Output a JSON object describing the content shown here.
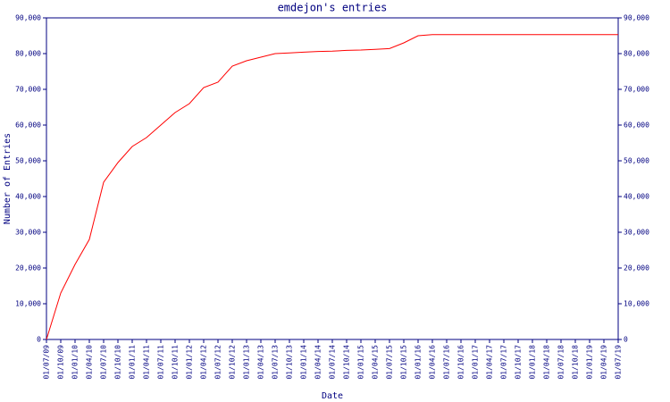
{
  "chart_data": {
    "type": "line",
    "title": "emdejon's entries",
    "x_label": "Date",
    "y_label": "Number of Entries",
    "categories": [
      "01/07/09",
      "01/10/09",
      "01/01/10",
      "01/04/10",
      "01/07/10",
      "01/10/10",
      "01/01/11",
      "01/04/11",
      "01/07/11",
      "01/10/11",
      "01/01/12",
      "01/04/12",
      "01/07/12",
      "01/10/12",
      "01/01/13",
      "01/04/13",
      "01/07/13",
      "01/10/13",
      "01/01/14",
      "01/04/14",
      "01/07/14",
      "01/10/14",
      "01/01/15",
      "01/04/15",
      "01/07/15",
      "01/10/15",
      "01/01/16",
      "01/04/16",
      "01/07/16",
      "01/10/16",
      "01/01/17",
      "01/04/17",
      "01/07/17",
      "01/10/17",
      "01/01/18",
      "01/04/18",
      "01/07/18",
      "01/10/18",
      "01/01/19",
      "01/04/19",
      "01/07/19"
    ],
    "series": [
      {
        "name": "entries",
        "color": "#ff0000",
        "values": [
          0,
          13000,
          21000,
          28000,
          44000,
          49500,
          54000,
          56500,
          60000,
          63500,
          66000,
          70500,
          72000,
          76500,
          78000,
          79000,
          80000,
          80200,
          80400,
          80600,
          80700,
          80900,
          81000,
          81200,
          81400,
          83000,
          85000,
          85300,
          85300,
          85300,
          85300,
          85300,
          85300,
          85300,
          85300,
          85300,
          85300,
          85300,
          85300,
          85300,
          85300
        ]
      }
    ],
    "ylim": [
      0,
      90000
    ],
    "yticks": [
      0,
      {
        "value": 10000,
        "label": "10,000"
      },
      {
        "value": 20000,
        "label": "20,000"
      },
      {
        "value": 30000,
        "label": "30,000"
      },
      {
        "value": 40000,
        "label": "40,000"
      },
      {
        "value": 50000,
        "label": "50,000"
      },
      {
        "value": 60000,
        "label": "60,000"
      },
      {
        "value": 70000,
        "label": "70,000"
      },
      {
        "value": 80000,
        "label": "80,000"
      },
      {
        "value": 90000,
        "label": "90,000"
      }
    ],
    "y2lim": [
      0,
      90000
    ],
    "y2ticks": [
      0,
      {
        "value": 10000,
        "label": "10,000"
      },
      {
        "value": 20000,
        "label": "20,000"
      },
      {
        "value": 30000,
        "label": "30,000"
      },
      {
        "value": 40000,
        "label": "40,000"
      },
      {
        "value": 50000,
        "label": "50,000"
      },
      {
        "value": 60000,
        "label": "60,000"
      },
      {
        "value": 70000,
        "label": "70,000"
      },
      {
        "value": 80000,
        "label": "80,000"
      },
      {
        "value": 90000,
        "label": "90,000"
      }
    ],
    "axis_color": "#000080",
    "text_color": "#000080"
  }
}
